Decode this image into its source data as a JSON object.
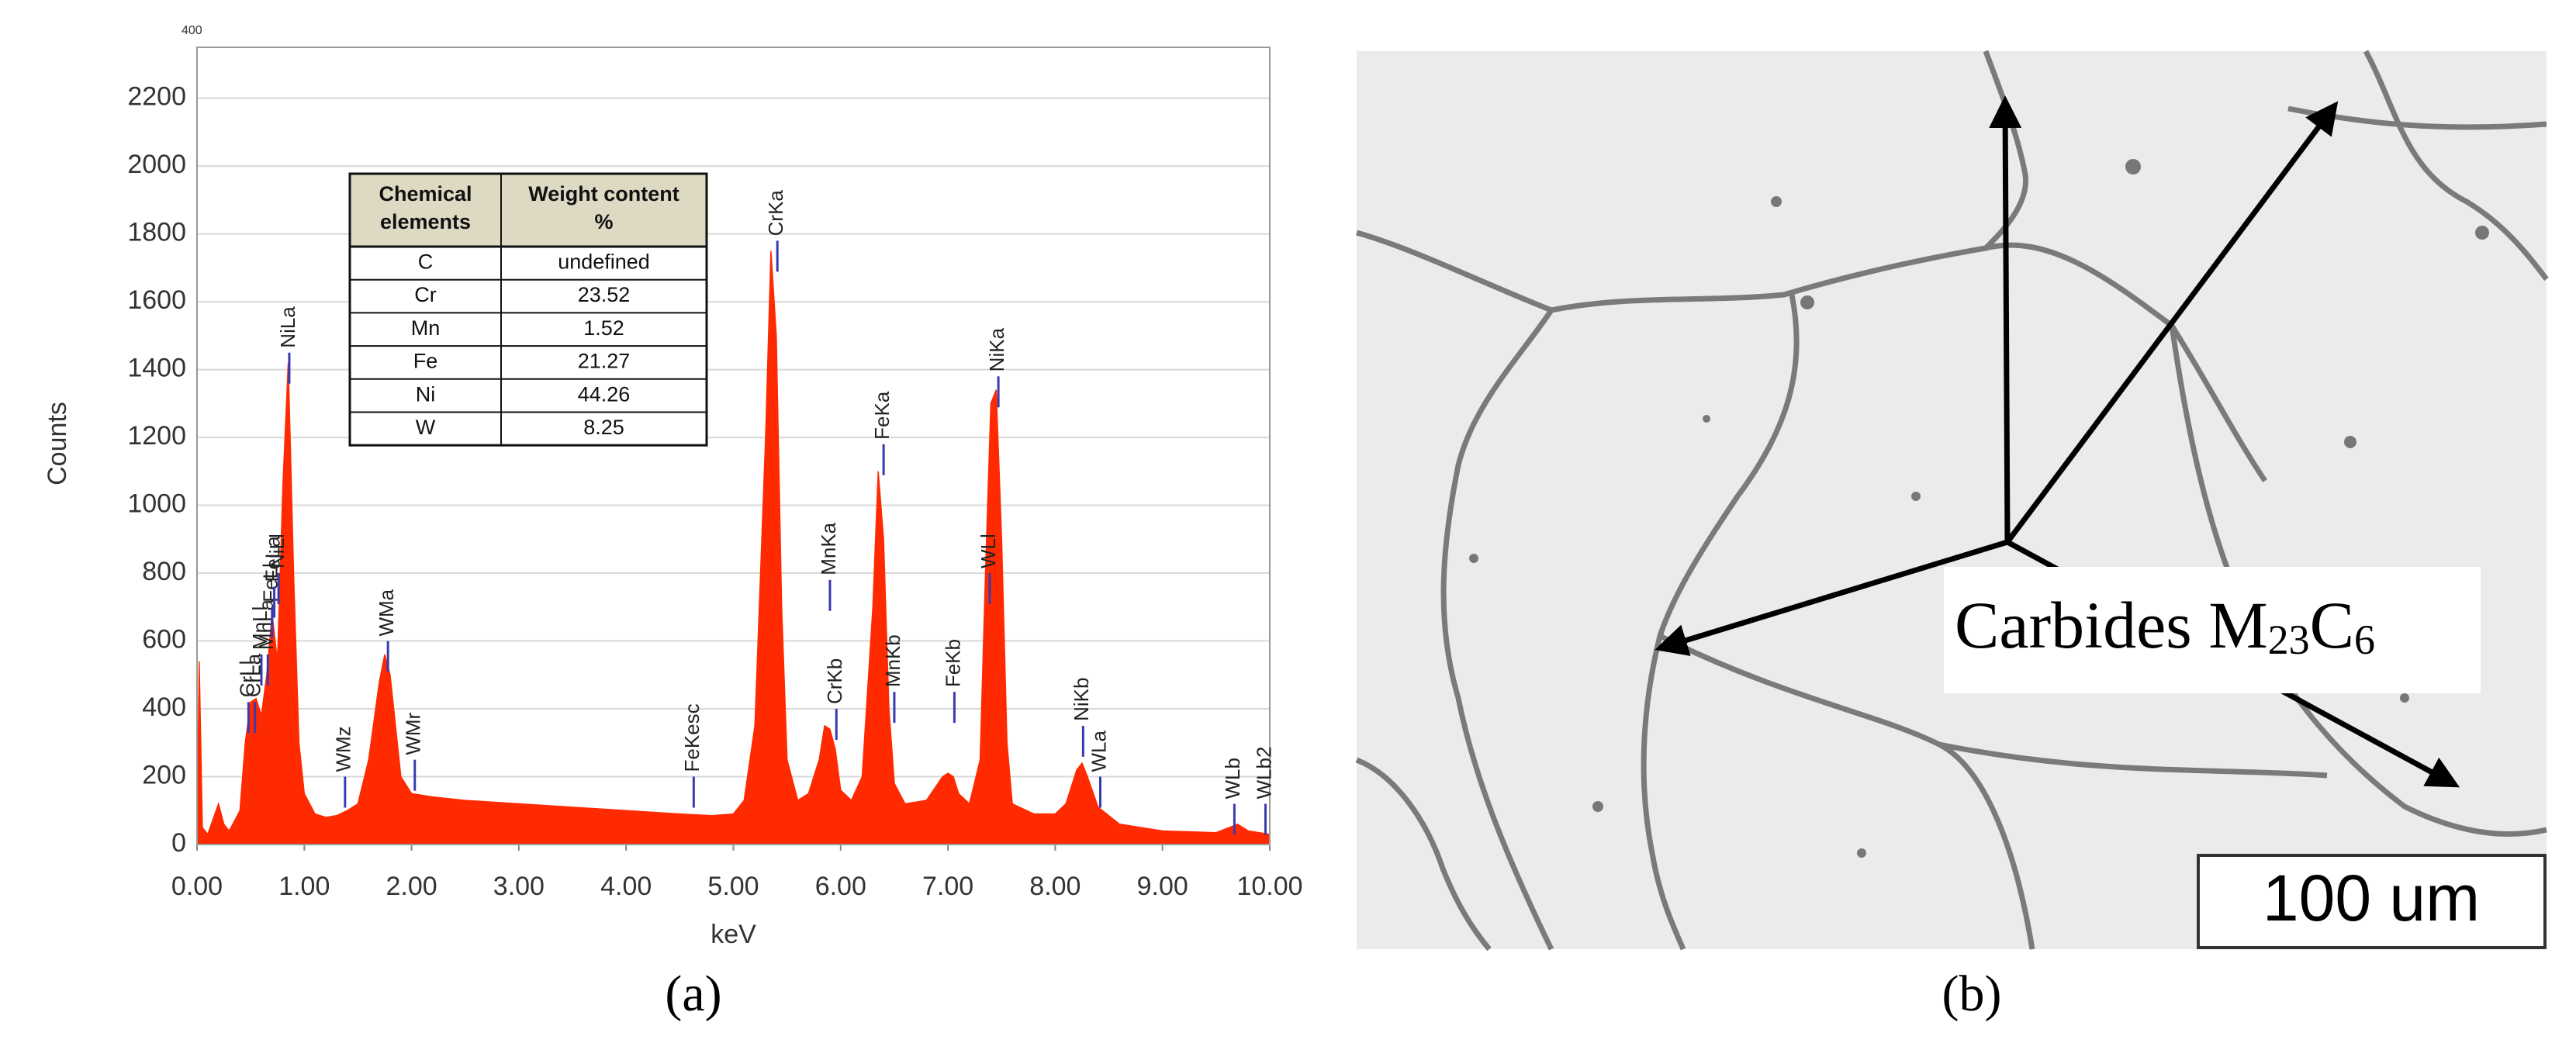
{
  "chart_data": {
    "type": "area",
    "corner_label": "400",
    "xlabel": "keV",
    "ylabel": "Counts",
    "color": "#ff2a00",
    "x": [
      0.0,
      0.02,
      0.05,
      0.1,
      0.2,
      0.25,
      0.3,
      0.4,
      0.45,
      0.5,
      0.55,
      0.6,
      0.65,
      0.7,
      0.75,
      0.8,
      0.85,
      0.9,
      0.95,
      1.0,
      1.1,
      1.2,
      1.3,
      1.4,
      1.5,
      1.6,
      1.7,
      1.75,
      1.8,
      1.85,
      1.9,
      2.0,
      2.2,
      2.5,
      3.0,
      3.5,
      4.0,
      4.5,
      4.8,
      5.0,
      5.1,
      5.2,
      5.3,
      5.35,
      5.4,
      5.45,
      5.5,
      5.6,
      5.7,
      5.8,
      5.85,
      5.9,
      5.95,
      6.0,
      6.1,
      6.2,
      6.3,
      6.35,
      6.4,
      6.45,
      6.5,
      6.6,
      6.8,
      6.95,
      7.0,
      7.05,
      7.1,
      7.2,
      7.3,
      7.35,
      7.4,
      7.45,
      7.5,
      7.55,
      7.6,
      7.8,
      8.0,
      8.1,
      8.2,
      8.25,
      8.3,
      8.4,
      8.6,
      8.8,
      9.0,
      9.5,
      9.7,
      9.8,
      10.0
    ],
    "values": [
      0,
      540,
      50,
      30,
      120,
      60,
      40,
      100,
      300,
      420,
      430,
      380,
      500,
      680,
      540,
      1050,
      1420,
      800,
      300,
      150,
      90,
      80,
      85,
      100,
      120,
      250,
      480,
      560,
      500,
      350,
      200,
      150,
      140,
      130,
      120,
      110,
      100,
      90,
      85,
      90,
      130,
      350,
      1200,
      1750,
      1500,
      700,
      250,
      130,
      150,
      250,
      350,
      340,
      280,
      160,
      130,
      200,
      700,
      1100,
      900,
      400,
      180,
      120,
      130,
      200,
      210,
      200,
      150,
      120,
      250,
      800,
      1300,
      1340,
      900,
      300,
      120,
      90,
      90,
      120,
      220,
      240,
      200,
      110,
      60,
      50,
      40,
      35,
      60,
      40,
      30
    ],
    "xlim": [
      0,
      10
    ],
    "xticks": [
      {
        "value": 0,
        "label": "0.00"
      },
      {
        "value": 1,
        "label": "1.00"
      },
      {
        "value": 2,
        "label": "2.00"
      },
      {
        "value": 3,
        "label": "3.00"
      },
      {
        "value": 4,
        "label": "4.00"
      },
      {
        "value": 5,
        "label": "5.00"
      },
      {
        "value": 6,
        "label": "6.00"
      },
      {
        "value": 7,
        "label": "7.00"
      },
      {
        "value": 8,
        "label": "8.00"
      },
      {
        "value": 9,
        "label": "9.00"
      },
      {
        "value": 10,
        "label": "10.00"
      }
    ],
    "ylim": [
      0,
      2350
    ],
    "yticks": [
      0,
      200,
      400,
      600,
      800,
      1000,
      1200,
      1400,
      1600,
      1800,
      2000,
      2200
    ],
    "grid": true,
    "annotations": [
      {
        "label": "CrLl",
        "x": 0.48,
        "y": 420
      },
      {
        "label": "CrLa",
        "x": 0.54,
        "y": 420
      },
      {
        "label": "MnLl",
        "x": 0.6,
        "y": 560
      },
      {
        "label": "MnLa",
        "x": 0.66,
        "y": 560
      },
      {
        "label": "FeLl",
        "x": 0.7,
        "y": 700
      },
      {
        "label": "FeLa",
        "x": 0.72,
        "y": 760
      },
      {
        "label": "NiLl",
        "x": 0.76,
        "y": 800
      },
      {
        "label": "NiLa",
        "x": 0.86,
        "y": 1450
      },
      {
        "label": "WMz",
        "x": 1.38,
        "y": 200
      },
      {
        "label": "WMa",
        "x": 1.78,
        "y": 600
      },
      {
        "label": "WMr",
        "x": 2.03,
        "y": 250
      },
      {
        "label": "FeKesc",
        "x": 4.63,
        "y": 200
      },
      {
        "label": "CrKa",
        "x": 5.41,
        "y": 1780
      },
      {
        "label": "MnKa",
        "x": 5.9,
        "y": 780
      },
      {
        "label": "CrKb",
        "x": 5.96,
        "y": 400
      },
      {
        "label": "FeKa",
        "x": 6.4,
        "y": 1180
      },
      {
        "label": "MnKb",
        "x": 6.5,
        "y": 450
      },
      {
        "label": "FeKb",
        "x": 7.06,
        "y": 450
      },
      {
        "label": "WLl",
        "x": 7.39,
        "y": 800
      },
      {
        "label": "NiKa",
        "x": 7.47,
        "y": 1380
      },
      {
        "label": "NiKb",
        "x": 8.26,
        "y": 350
      },
      {
        "label": "WLa",
        "x": 8.42,
        "y": 200
      },
      {
        "label": "WLb",
        "x": 9.67,
        "y": 120
      },
      {
        "label": "WLb2",
        "x": 9.96,
        "y": 120
      }
    ],
    "table": {
      "header": [
        [
          "Chemical",
          "elements"
        ],
        [
          "Weight content",
          "%"
        ]
      ],
      "rows": [
        [
          "C",
          "undefined"
        ],
        [
          "Cr",
          "23.52"
        ],
        [
          "Mn",
          "1.52"
        ],
        [
          "Fe",
          "21.27"
        ],
        [
          "Ni",
          "44.26"
        ],
        [
          "W",
          "8.25"
        ]
      ]
    }
  },
  "figure": {
    "panel_labels": [
      "(a)",
      "(b)"
    ],
    "micrograph": {
      "annotation": [
        "Carbides M",
        "23",
        "C",
        "6"
      ],
      "scale_bar": "100 um"
    }
  }
}
